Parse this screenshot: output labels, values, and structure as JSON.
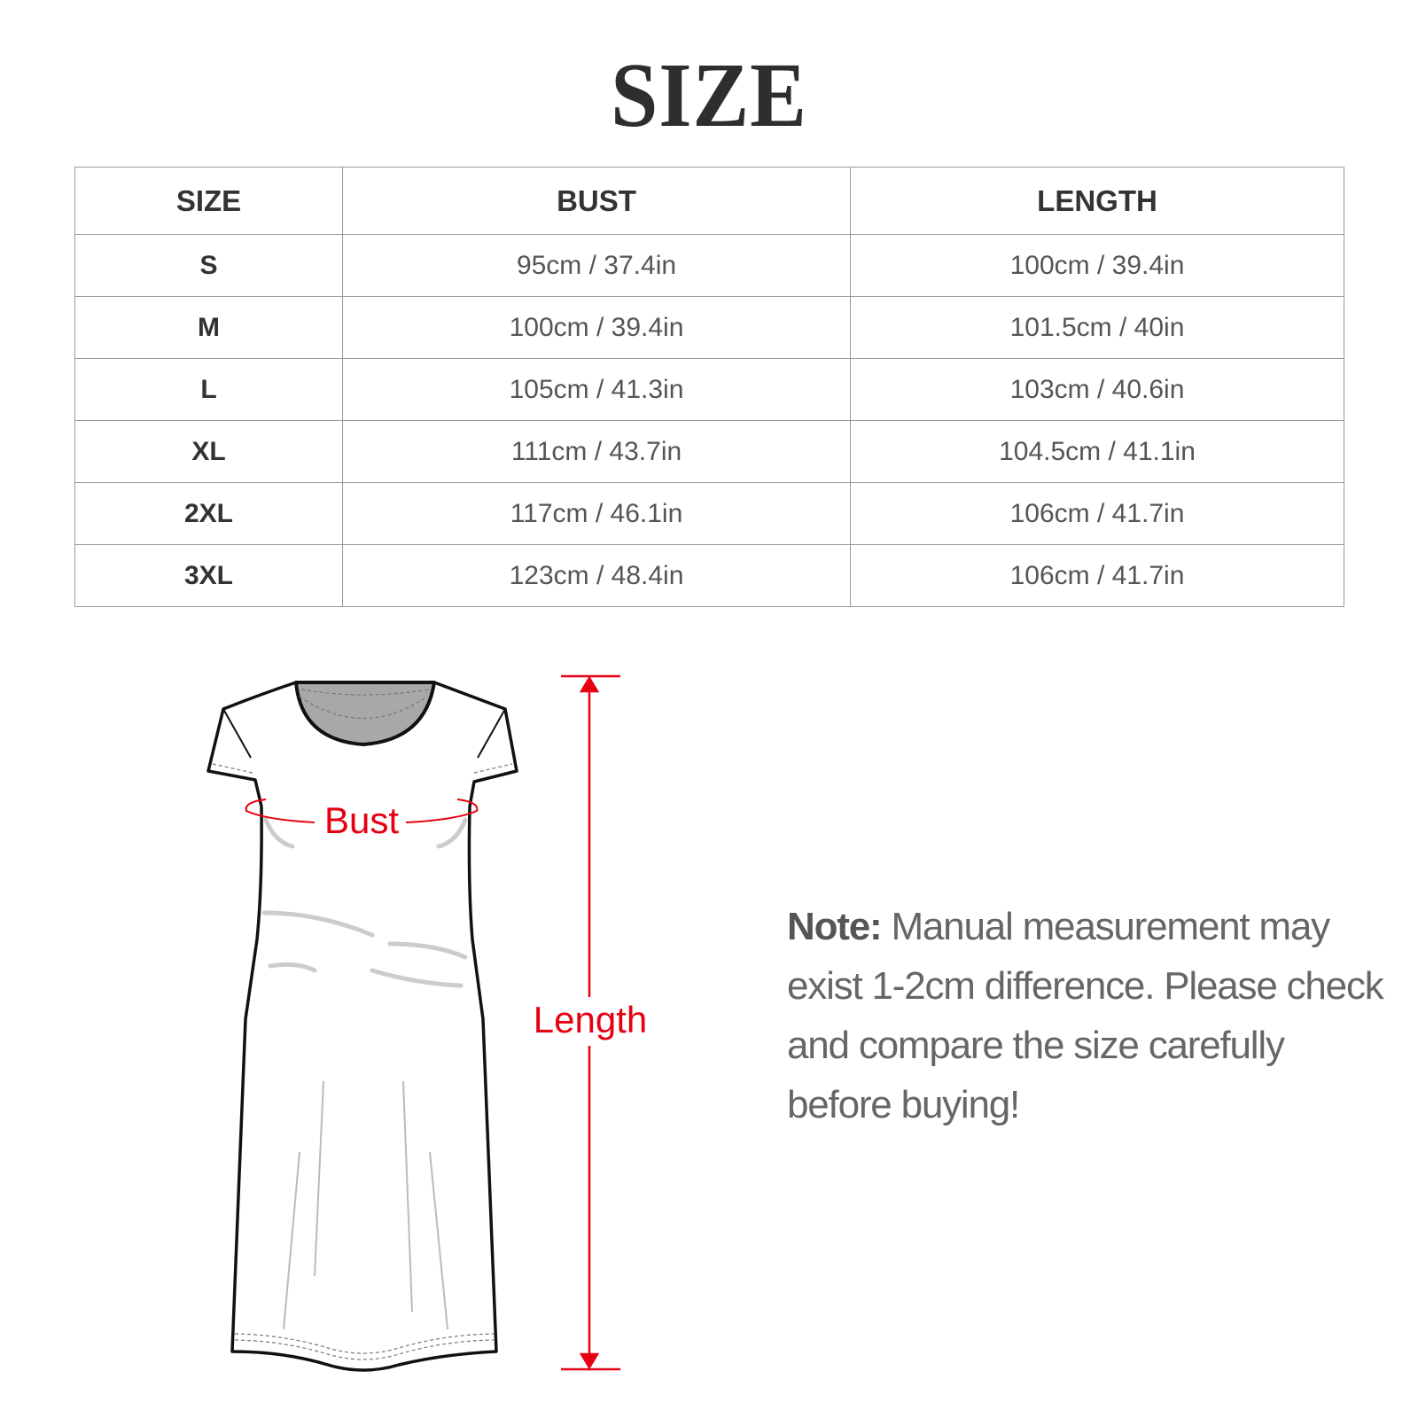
{
  "title": "SIZE",
  "table": {
    "headers": [
      "SIZE",
      "BUST",
      "LENGTH"
    ],
    "rows": [
      {
        "size": "S",
        "bust": "95cm / 37.4in",
        "length": "100cm / 39.4in"
      },
      {
        "size": "M",
        "bust": "100cm / 39.4in",
        "length": "101.5cm / 40in"
      },
      {
        "size": "L",
        "bust": "105cm / 41.3in",
        "length": "103cm / 40.6in"
      },
      {
        "size": "XL",
        "bust": "111cm / 43.7in",
        "length": "104.5cm / 41.1in"
      },
      {
        "size": "2XL",
        "bust": "117cm / 46.1in",
        "length": "106cm / 41.7in"
      },
      {
        "size": "3XL",
        "bust": "123cm / 48.4in",
        "length": "106cm / 41.7in"
      }
    ]
  },
  "diagram": {
    "bust_label": "Bust",
    "length_label": "Length",
    "accent_color": "#e60012"
  },
  "note": {
    "label": "Note:",
    "text": " Manual measurement may exist 1-2cm difference. Please check and compare the size carefully before buying!"
  }
}
